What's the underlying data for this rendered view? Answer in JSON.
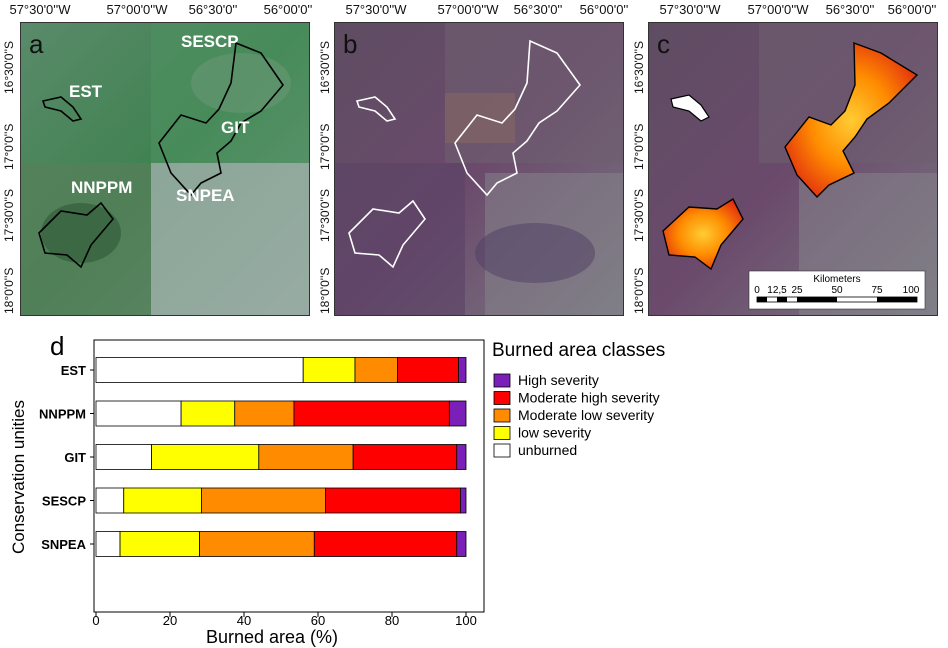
{
  "panels": [
    {
      "letter": "a"
    },
    {
      "letter": "b"
    },
    {
      "letter": "c"
    }
  ],
  "map_ticks": {
    "top": [
      "57°30'0''W",
      "57°00'0''W",
      "56°30'0''",
      "56°00'0''"
    ],
    "left": [
      "16°30'0''S",
      "17°0'0''S",
      "17°30'0''S",
      "18°0'0''S"
    ]
  },
  "zone_labels": [
    "EST",
    "SESCP",
    "GIT",
    "NNPPM",
    "SNPEA"
  ],
  "scalebar": {
    "title": "Kilometers",
    "labels": [
      "0",
      "12,5",
      "25",
      "50",
      "75",
      "100"
    ]
  },
  "colors": {
    "high": "#7a1fb8",
    "moderate_high": "#ff0000",
    "moderate_low": "#ff8c00",
    "low": "#ffff00",
    "unburned": "#ffffff",
    "map_green": "#4f8a5a",
    "map_purple": "#6b4a6c"
  },
  "chart_data": {
    "type": "bar",
    "orientation": "horizontal",
    "stacked": true,
    "panel_letter": "d",
    "categories": [
      "EST",
      "NNPPM",
      "GIT",
      "SESCP",
      "SNPEA"
    ],
    "series": [
      {
        "name": "unburned",
        "values": [
          56,
          23,
          15,
          7.5,
          6.5
        ]
      },
      {
        "name": "low severity",
        "values": [
          14,
          14.5,
          29,
          21,
          21.5
        ]
      },
      {
        "name": "Moderate low severity",
        "values": [
          11.5,
          16,
          25.5,
          33.5,
          31
        ]
      },
      {
        "name": "Moderate high severity",
        "values": [
          16.5,
          42,
          28,
          36.5,
          38.5
        ]
      },
      {
        "name": "High severity",
        "values": [
          2,
          4.5,
          2.5,
          1.5,
          2.5
        ]
      }
    ],
    "legend_order": [
      "High severity",
      "Moderate high severity",
      "Moderate low severity",
      "low severity",
      "unburned"
    ],
    "legend_title": "Burned area classes",
    "xlabel": "Burned area (%)",
    "ylabel": "Conservation unities",
    "xlim": [
      0,
      100
    ],
    "xticks": [
      "0",
      "20",
      "40",
      "60",
      "80",
      "100"
    ],
    "grid": false,
    "legend_position": "right"
  }
}
